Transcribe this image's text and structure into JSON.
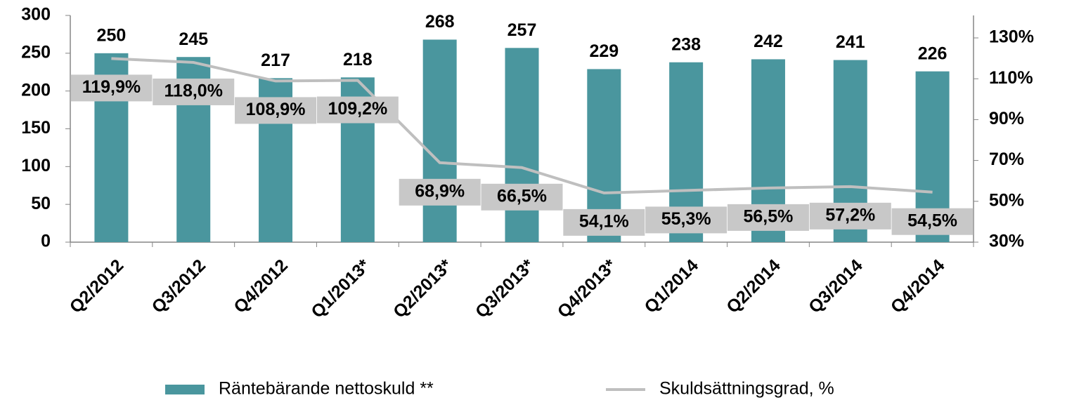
{
  "chart_data": {
    "type": "bar",
    "categories": [
      "Q2/2012",
      "Q3/2012",
      "Q4/2012",
      "Q1/2013*",
      "Q2/2013*",
      "Q3/2013*",
      "Q4/2013*",
      "Q1/2014",
      "Q2/2014",
      "Q3/2014",
      "Q4/2014"
    ],
    "series": [
      {
        "name": "Räntebärande nettoskuld **",
        "type": "bar",
        "color": "#4a969e",
        "values": [
          250,
          245,
          217,
          218,
          268,
          257,
          229,
          238,
          242,
          241,
          226
        ]
      },
      {
        "name": "Skuldsättningsgrad, %",
        "type": "line",
        "axis": "y2",
        "color": "#bfbfbf",
        "values": [
          119.9,
          118.0,
          108.9,
          109.2,
          68.9,
          66.5,
          54.1,
          55.3,
          56.5,
          57.2,
          54.5
        ],
        "value_labels": [
          "119,9%",
          "118,0%",
          "108,9%",
          "109,2%",
          "68,9%",
          "66,5%",
          "54,1%",
          "55,3%",
          "56,5%",
          "57,2%",
          "54,5%"
        ]
      }
    ],
    "ylim": [
      0,
      300
    ],
    "yticks": [
      0,
      50,
      100,
      150,
      200,
      250,
      300
    ],
    "y2lim": [
      30,
      141
    ],
    "y2ticks": [
      {
        "value": 30,
        "label": "30%"
      },
      {
        "value": 50,
        "label": "50%"
      },
      {
        "value": 70,
        "label": "70%"
      },
      {
        "value": 90,
        "label": "90%"
      },
      {
        "value": 110,
        "label": "110%"
      },
      {
        "value": 130,
        "label": "130%"
      }
    ],
    "legend": "bottom"
  }
}
